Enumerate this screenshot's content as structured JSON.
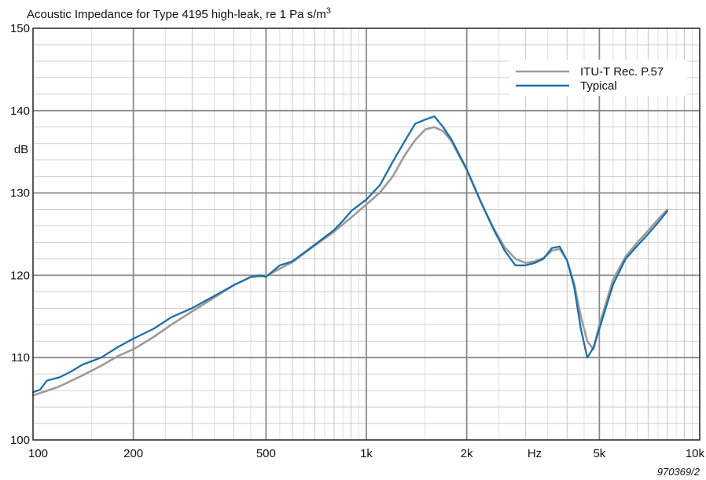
{
  "chart_data": {
    "type": "line",
    "title": "Acoustic Impedance for Type 4195 high-leak, re 1 Pa s/m",
    "title_superscript": "3",
    "xlabel": "Hz",
    "ylabel": "dB",
    "x_scale": "log",
    "xlim": [
      100,
      10000
    ],
    "ylim": [
      100,
      150
    ],
    "grid": true,
    "legend_position": "top-right",
    "x_ticks": [
      {
        "value": 100,
        "label": "100"
      },
      {
        "value": 200,
        "label": "200"
      },
      {
        "value": 500,
        "label": "500"
      },
      {
        "value": 1000,
        "label": "1k"
      },
      {
        "value": 2000,
        "label": "2k"
      },
      {
        "value": 5000,
        "label": "5k"
      },
      {
        "value": 10000,
        "label": "10k"
      }
    ],
    "y_ticks": [
      {
        "value": 100,
        "label": "100"
      },
      {
        "value": 110,
        "label": "110"
      },
      {
        "value": 120,
        "label": "120"
      },
      {
        "value": 130,
        "label": "130"
      },
      {
        "value": 140,
        "label": "140"
      },
      {
        "value": 150,
        "label": "150"
      }
    ],
    "annotation": "970369/2",
    "series": [
      {
        "name": "ITU-T Rec. P.57",
        "color": "#a09a96",
        "x": [
          100,
          120,
          140,
          160,
          180,
          200,
          230,
          260,
          300,
          350,
          400,
          450,
          500,
          550,
          600,
          700,
          800,
          900,
          1000,
          1100,
          1200,
          1300,
          1400,
          1500,
          1600,
          1700,
          1800,
          2000,
          2200,
          2400,
          2600,
          2800,
          3000,
          3200,
          3400,
          3600,
          3800,
          4000,
          4200,
          4400,
          4600,
          4800,
          5000,
          5500,
          6000,
          6500,
          7000,
          7500,
          8000
        ],
        "y": [
          105.4,
          106.5,
          107.8,
          109.0,
          110.2,
          111.0,
          112.5,
          114.0,
          115.6,
          117.3,
          118.8,
          119.8,
          119.9,
          120.8,
          121.6,
          123.6,
          125.3,
          127.0,
          128.6,
          130.1,
          132.0,
          134.5,
          136.4,
          137.7,
          138.0,
          137.5,
          136.3,
          132.8,
          129.0,
          125.8,
          123.4,
          122.0,
          121.5,
          121.7,
          122.1,
          123.0,
          123.2,
          121.8,
          119.0,
          115.0,
          112.0,
          111.0,
          114.0,
          119.5,
          122.3,
          124.0,
          125.4,
          126.8,
          128.0
        ]
      },
      {
        "name": "Typical",
        "color": "#1d6fab",
        "x": [
          100,
          105,
          110,
          115,
          120,
          130,
          140,
          160,
          180,
          200,
          230,
          260,
          300,
          350,
          400,
          450,
          480,
          500,
          550,
          600,
          700,
          800,
          850,
          900,
          1000,
          1100,
          1200,
          1300,
          1400,
          1500,
          1600,
          1700,
          1800,
          2000,
          2200,
          2400,
          2600,
          2800,
          3000,
          3200,
          3400,
          3600,
          3800,
          4000,
          4200,
          4400,
          4600,
          4800,
          5000,
          5500,
          6000,
          6500,
          7000,
          7500,
          8000
        ],
        "y": [
          105.8,
          106.1,
          107.2,
          107.4,
          107.6,
          108.3,
          109.1,
          110.0,
          111.3,
          112.3,
          113.5,
          114.9,
          116.0,
          117.5,
          118.8,
          119.8,
          120.0,
          119.8,
          121.2,
          121.7,
          123.7,
          125.5,
          126.6,
          127.8,
          129.2,
          131.0,
          133.8,
          136.2,
          138.4,
          138.9,
          139.3,
          138.0,
          136.5,
          132.9,
          129.0,
          125.7,
          123.0,
          121.2,
          121.2,
          121.5,
          122.0,
          123.3,
          123.5,
          121.8,
          118.6,
          113.5,
          110.0,
          111.2,
          113.5,
          118.9,
          122.0,
          123.6,
          125.0,
          126.4,
          127.8
        ]
      }
    ]
  }
}
